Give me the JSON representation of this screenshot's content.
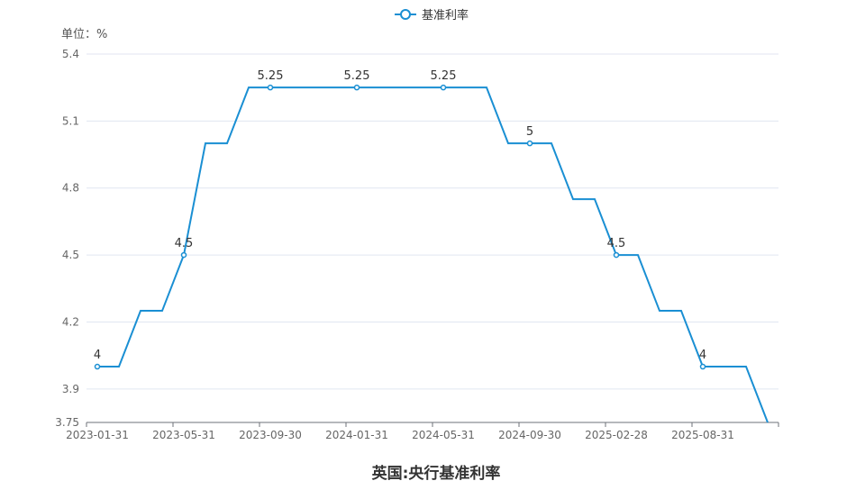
{
  "chart_data": {
    "type": "line",
    "title": "英国:央行基准利率",
    "unit_label": "单位：%",
    "legend": {
      "position": "top-center",
      "entries": [
        "基准利率"
      ]
    },
    "grid": true,
    "ylim": [
      3.75,
      5.4
    ],
    "yticks": [
      3.75,
      3.9,
      4.2,
      4.5,
      4.8,
      5.1,
      5.4
    ],
    "x": [
      "2023-01-31",
      "2023-02-28",
      "2023-03-31",
      "2023-04-30",
      "2023-05-31",
      "2023-06-30",
      "2023-07-31",
      "2023-08-31",
      "2023-09-30",
      "2023-10-31",
      "2023-11-30",
      "2023-12-31",
      "2024-01-31",
      "2024-02-29",
      "2024-03-31",
      "2024-04-30",
      "2024-05-31",
      "2024-06-30",
      "2024-07-31",
      "2024-08-31",
      "2024-09-30",
      "2024-10-31",
      "2024-11-30",
      "2024-12-31",
      "2025-02-28",
      "2025-03-31",
      "2025-05-31",
      "2025-06-30",
      "2025-08-31",
      "2025-09-30",
      "2025-10-31",
      "2025-12-31"
    ],
    "xtick_labels": [
      "2023-01-31",
      "2023-05-31",
      "2023-09-30",
      "2024-01-31",
      "2024-05-31",
      "2024-09-30",
      "2025-02-28",
      "2025-08-31"
    ],
    "series": [
      {
        "name": "基准利率",
        "color": "#1a8fd3",
        "values": [
          4,
          4,
          4.25,
          4.25,
          4.5,
          5,
          5,
          5.25,
          5.25,
          5.25,
          5.25,
          5.25,
          5.25,
          5.25,
          5.25,
          5.25,
          5.25,
          5.25,
          5.25,
          5,
          5,
          5,
          4.75,
          4.75,
          4.5,
          4.5,
          4.25,
          4.25,
          4,
          4,
          4,
          3.75
        ],
        "labelled_points": [
          0,
          4,
          8,
          12,
          16,
          20,
          24,
          28
        ]
      }
    ]
  }
}
